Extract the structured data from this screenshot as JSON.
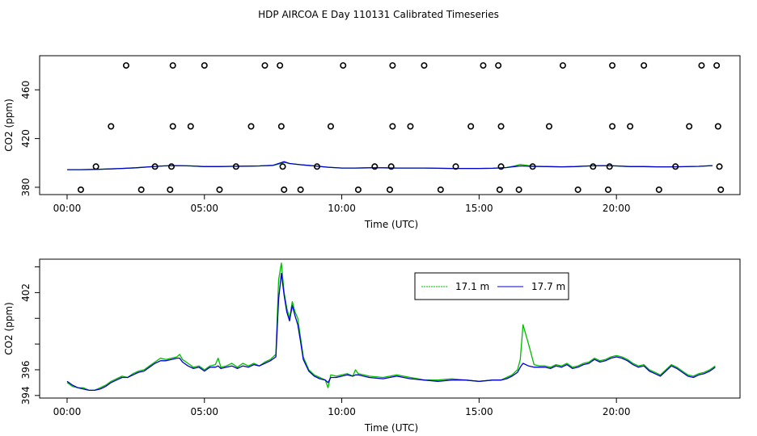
{
  "page_title": "HDP AIRCOA E  Day 110131  Calibrated Timeseries",
  "chart_data": [
    {
      "type": "scatter+line",
      "xlabel": "Time (UTC)",
      "ylabel": "CO2 (ppm)",
      "xlim": [
        -1.0,
        24.5
      ],
      "ylim": [
        374,
        488
      ],
      "x_ticks": [
        0,
        5,
        10,
        15,
        20
      ],
      "x_tick_labels": [
        "00:00",
        "05:00",
        "10:00",
        "15:00",
        "20:00"
      ],
      "y_ticks": [
        380,
        420,
        460
      ],
      "y_tick_labels": [
        "380",
        "420",
        "460"
      ],
      "calibration_points": [
        {
          "x": 2.15,
          "y": 480
        },
        {
          "x": 3.85,
          "y": 480
        },
        {
          "x": 5.0,
          "y": 480
        },
        {
          "x": 7.2,
          "y": 480
        },
        {
          "x": 7.75,
          "y": 480
        },
        {
          "x": 10.05,
          "y": 480
        },
        {
          "x": 11.85,
          "y": 480
        },
        {
          "x": 13.0,
          "y": 480
        },
        {
          "x": 15.15,
          "y": 480
        },
        {
          "x": 15.7,
          "y": 480
        },
        {
          "x": 18.05,
          "y": 480
        },
        {
          "x": 19.85,
          "y": 480
        },
        {
          "x": 21.0,
          "y": 480
        },
        {
          "x": 23.1,
          "y": 480
        },
        {
          "x": 23.65,
          "y": 480
        },
        {
          "x": 1.6,
          "y": 430
        },
        {
          "x": 3.85,
          "y": 430
        },
        {
          "x": 4.5,
          "y": 430
        },
        {
          "x": 6.7,
          "y": 430
        },
        {
          "x": 7.8,
          "y": 430
        },
        {
          "x": 9.6,
          "y": 430
        },
        {
          "x": 11.85,
          "y": 430
        },
        {
          "x": 12.5,
          "y": 430
        },
        {
          "x": 14.7,
          "y": 430
        },
        {
          "x": 15.8,
          "y": 430
        },
        {
          "x": 17.55,
          "y": 430
        },
        {
          "x": 19.85,
          "y": 430
        },
        {
          "x": 20.5,
          "y": 430
        },
        {
          "x": 22.65,
          "y": 430
        },
        {
          "x": 23.7,
          "y": 430
        },
        {
          "x": 1.05,
          "y": 397
        },
        {
          "x": 3.2,
          "y": 397
        },
        {
          "x": 3.8,
          "y": 397
        },
        {
          "x": 6.15,
          "y": 397
        },
        {
          "x": 7.85,
          "y": 397
        },
        {
          "x": 9.1,
          "y": 397
        },
        {
          "x": 11.2,
          "y": 397
        },
        {
          "x": 11.8,
          "y": 397
        },
        {
          "x": 14.15,
          "y": 397
        },
        {
          "x": 15.8,
          "y": 397
        },
        {
          "x": 16.95,
          "y": 397
        },
        {
          "x": 19.15,
          "y": 397
        },
        {
          "x": 19.75,
          "y": 397
        },
        {
          "x": 22.15,
          "y": 397
        },
        {
          "x": 23.75,
          "y": 397
        },
        {
          "x": 0.5,
          "y": 378
        },
        {
          "x": 2.7,
          "y": 378
        },
        {
          "x": 3.75,
          "y": 378
        },
        {
          "x": 5.55,
          "y": 378
        },
        {
          "x": 7.9,
          "y": 378
        },
        {
          "x": 8.5,
          "y": 378
        },
        {
          "x": 10.6,
          "y": 378
        },
        {
          "x": 11.75,
          "y": 378
        },
        {
          "x": 13.6,
          "y": 378
        },
        {
          "x": 15.75,
          "y": 378
        },
        {
          "x": 16.45,
          "y": 378
        },
        {
          "x": 18.6,
          "y": 378
        },
        {
          "x": 19.7,
          "y": 378
        },
        {
          "x": 21.55,
          "y": 378
        },
        {
          "x": 23.8,
          "y": 378
        }
      ],
      "series": [
        {
          "color": "#00bb00",
          "x": [
            0,
            0.5,
            1,
            1.5,
            2,
            2.5,
            3,
            3.5,
            4,
            4.5,
            5,
            5.5,
            6,
            6.5,
            7,
            7.5,
            7.7,
            7.9,
            8.1,
            8.5,
            9,
            9.5,
            10,
            10.5,
            11,
            11.5,
            12,
            12.5,
            13,
            13.5,
            14,
            14.5,
            15,
            15.5,
            16,
            16.3,
            16.5,
            16.8,
            17,
            17.5,
            18,
            18.5,
            19,
            19.5,
            20,
            20.5,
            21,
            21.5,
            22,
            22.5,
            23,
            23.5
          ],
          "y": [
            394.5,
            394.5,
            394.7,
            395,
            395.5,
            396,
            396.8,
            397.5,
            397.8,
            397.5,
            397,
            397,
            397.2,
            397.3,
            397.5,
            398,
            399,
            400.5,
            399.5,
            398.5,
            397.5,
            396.5,
            395.8,
            395.8,
            396,
            396,
            395.8,
            395.8,
            395.8,
            395.6,
            395.5,
            395.5,
            395.5,
            395.6,
            396.2,
            397.5,
            398.8,
            397.8,
            397.3,
            397,
            396.8,
            397,
            397.5,
            397.8,
            397.5,
            397,
            397,
            396.8,
            396.8,
            396.9,
            397.2,
            397.8
          ]
        },
        {
          "color": "#0000cc",
          "x": [
            0,
            0.5,
            1,
            1.5,
            2,
            2.5,
            3,
            3.5,
            4,
            4.5,
            5,
            5.5,
            6,
            6.5,
            7,
            7.5,
            7.7,
            7.9,
            8.1,
            8.5,
            9,
            9.5,
            10,
            10.5,
            11,
            11.5,
            12,
            12.5,
            13,
            13.5,
            14,
            14.5,
            15,
            15.5,
            16,
            16.3,
            16.5,
            16.8,
            17,
            17.5,
            18,
            18.5,
            19,
            19.5,
            20,
            20.5,
            21,
            21.5,
            22,
            22.5,
            23,
            23.5
          ],
          "y": [
            394.5,
            394.5,
            394.7,
            395,
            395.5,
            396,
            396.8,
            397.5,
            397.8,
            397.5,
            397,
            397,
            397.2,
            397.3,
            397.5,
            398,
            399.5,
            401,
            399.5,
            398.5,
            397.5,
            396.5,
            395.8,
            395.8,
            396,
            396,
            395.8,
            395.8,
            395.8,
            395.6,
            395.5,
            395.5,
            395.5,
            395.6,
            396.2,
            397,
            397.5,
            397.3,
            397.1,
            397,
            396.8,
            397,
            397.5,
            397.8,
            397.5,
            397,
            397,
            396.8,
            396.8,
            396.9,
            397.2,
            397.8
          ]
        }
      ]
    },
    {
      "type": "line",
      "xlabel": "Time (UTC)",
      "ylabel": "CO2 (ppm)",
      "xlim": [
        -1.0,
        24.5
      ],
      "ylim": [
        393.8,
        404.6
      ],
      "x_ticks": [
        0,
        5,
        10,
        15,
        20
      ],
      "x_tick_labels": [
        "00:00",
        "05:00",
        "10:00",
        "15:00",
        "20:00"
      ],
      "y_ticks": [
        394,
        396,
        398,
        400,
        402,
        404
      ],
      "y_tick_labels": [
        "394",
        "396",
        "",
        "",
        "402",
        ""
      ],
      "legend": [
        {
          "label": "17.1 m",
          "color": "#00bb00"
        },
        {
          "label": "17.7 m",
          "color": "#0000cc"
        }
      ],
      "series": [
        {
          "name": "17.1 m",
          "color": "#00bb00",
          "x": [
            0,
            0.2,
            0.4,
            0.6,
            0.8,
            1.0,
            1.2,
            1.4,
            1.6,
            1.8,
            2.0,
            2.2,
            2.4,
            2.6,
            2.8,
            3.0,
            3.2,
            3.4,
            3.6,
            3.8,
            4.0,
            4.1,
            4.2,
            4.4,
            4.6,
            4.8,
            5.0,
            5.2,
            5.4,
            5.5,
            5.6,
            5.8,
            6.0,
            6.2,
            6.4,
            6.6,
            6.8,
            7.0,
            7.2,
            7.4,
            7.6,
            7.7,
            7.8,
            7.9,
            8.0,
            8.1,
            8.2,
            8.3,
            8.4,
            8.5,
            8.6,
            8.8,
            9.0,
            9.2,
            9.4,
            9.5,
            9.6,
            9.8,
            10.0,
            10.2,
            10.4,
            10.5,
            10.6,
            10.8,
            11.0,
            11.5,
            12.0,
            12.5,
            13.0,
            13.5,
            14.0,
            14.5,
            15.0,
            15.5,
            15.8,
            16.0,
            16.2,
            16.4,
            16.5,
            16.6,
            16.8,
            17.0,
            17.2,
            17.4,
            17.6,
            17.8,
            18.0,
            18.2,
            18.4,
            18.6,
            18.8,
            19.0,
            19.2,
            19.4,
            19.6,
            19.8,
            20.0,
            20.2,
            20.4,
            20.6,
            20.8,
            21.0,
            21.2,
            21.4,
            21.6,
            21.8,
            22.0,
            22.2,
            22.4,
            22.6,
            22.8,
            23.0,
            23.2,
            23.4,
            23.6
          ],
          "y": [
            395.0,
            394.7,
            394.6,
            394.6,
            394.4,
            394.4,
            394.6,
            394.8,
            395.1,
            395.3,
            395.5,
            395.4,
            395.7,
            395.9,
            396.0,
            396.3,
            396.6,
            396.9,
            396.8,
            396.9,
            397.0,
            397.2,
            396.8,
            396.5,
            396.2,
            396.3,
            396.0,
            396.3,
            396.4,
            396.9,
            396.2,
            396.3,
            396.5,
            396.2,
            396.5,
            396.3,
            396.5,
            396.3,
            396.6,
            396.8,
            397.2,
            403.0,
            404.3,
            402.0,
            400.8,
            400.0,
            401.3,
            400.5,
            400.0,
            398.5,
            397.0,
            396.0,
            395.6,
            395.4,
            395.2,
            394.6,
            395.6,
            395.5,
            395.6,
            395.7,
            395.5,
            396.0,
            395.7,
            395.6,
            395.5,
            395.4,
            395.6,
            395.4,
            395.2,
            395.2,
            395.3,
            395.2,
            395.1,
            395.2,
            395.2,
            395.4,
            395.6,
            396.0,
            396.8,
            399.5,
            398.0,
            396.4,
            396.3,
            396.3,
            396.2,
            396.4,
            396.3,
            396.5,
            396.2,
            396.3,
            396.5,
            396.6,
            396.9,
            396.7,
            396.8,
            397.0,
            397.1,
            397.0,
            396.8,
            396.5,
            396.3,
            396.4,
            396.0,
            395.8,
            395.6,
            396.0,
            396.4,
            396.2,
            395.9,
            395.6,
            395.5,
            395.7,
            395.8,
            396.0,
            396.3
          ]
        },
        {
          "name": "17.7 m",
          "color": "#0000cc",
          "x": [
            0,
            0.2,
            0.4,
            0.6,
            0.8,
            1.0,
            1.2,
            1.4,
            1.6,
            1.8,
            2.0,
            2.2,
            2.4,
            2.6,
            2.8,
            3.0,
            3.2,
            3.4,
            3.6,
            3.8,
            4.0,
            4.1,
            4.2,
            4.4,
            4.6,
            4.8,
            5.0,
            5.2,
            5.4,
            5.5,
            5.6,
            5.8,
            6.0,
            6.2,
            6.4,
            6.6,
            6.8,
            7.0,
            7.2,
            7.4,
            7.6,
            7.7,
            7.8,
            7.9,
            8.0,
            8.1,
            8.2,
            8.3,
            8.4,
            8.5,
            8.6,
            8.8,
            9.0,
            9.2,
            9.4,
            9.5,
            9.6,
            9.8,
            10.0,
            10.2,
            10.4,
            10.5,
            10.6,
            10.8,
            11.0,
            11.5,
            12.0,
            12.5,
            13.0,
            13.5,
            14.0,
            14.5,
            15.0,
            15.5,
            15.8,
            16.0,
            16.2,
            16.4,
            16.5,
            16.6,
            16.8,
            17.0,
            17.2,
            17.4,
            17.6,
            17.8,
            18.0,
            18.2,
            18.4,
            18.6,
            18.8,
            19.0,
            19.2,
            19.4,
            19.6,
            19.8,
            20.0,
            20.2,
            20.4,
            20.6,
            20.8,
            21.0,
            21.2,
            21.4,
            21.6,
            21.8,
            22.0,
            22.2,
            22.4,
            22.6,
            22.8,
            23.0,
            23.2,
            23.4,
            23.6
          ],
          "y": [
            395.1,
            394.8,
            394.6,
            394.5,
            394.4,
            394.4,
            394.5,
            394.7,
            395.0,
            395.2,
            395.4,
            395.4,
            395.6,
            395.8,
            395.9,
            396.2,
            396.5,
            396.7,
            396.7,
            396.8,
            396.9,
            396.9,
            396.6,
            396.3,
            396.1,
            396.2,
            395.9,
            396.2,
            396.2,
            396.3,
            396.1,
            396.2,
            396.3,
            396.1,
            396.3,
            396.2,
            396.4,
            396.3,
            396.5,
            396.7,
            397.0,
            401.5,
            403.5,
            401.8,
            400.5,
            399.8,
            401.0,
            400.2,
            399.5,
            398.2,
            396.8,
            395.9,
            395.5,
            395.3,
            395.2,
            395.0,
            395.4,
            395.4,
            395.5,
            395.6,
            395.5,
            395.6,
            395.6,
            395.5,
            395.4,
            395.3,
            395.5,
            395.3,
            395.2,
            395.1,
            395.2,
            395.2,
            395.1,
            395.2,
            395.2,
            395.3,
            395.5,
            395.8,
            396.2,
            396.5,
            396.3,
            396.2,
            396.2,
            396.2,
            396.1,
            396.3,
            396.2,
            396.4,
            396.1,
            396.2,
            396.4,
            396.5,
            396.8,
            396.6,
            396.7,
            396.9,
            397.0,
            396.9,
            396.7,
            396.4,
            396.2,
            396.3,
            395.9,
            395.7,
            395.5,
            395.9,
            396.3,
            396.1,
            395.8,
            395.5,
            395.4,
            395.6,
            395.7,
            395.9,
            396.2
          ]
        }
      ]
    }
  ]
}
